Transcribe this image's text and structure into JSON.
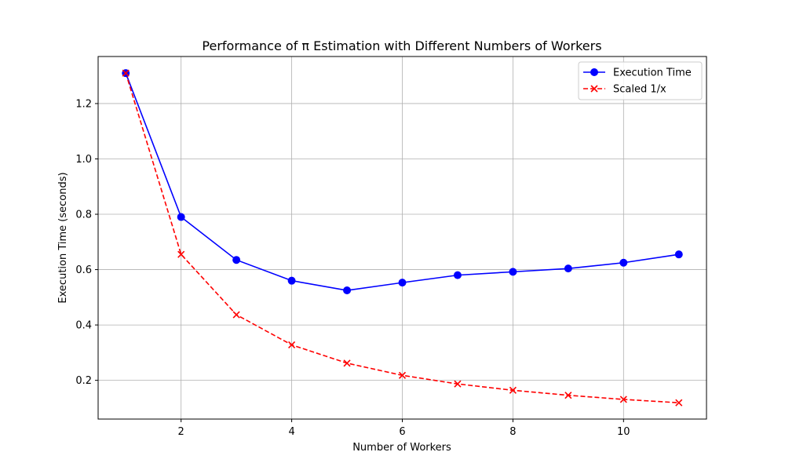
{
  "chart_data": {
    "type": "line",
    "title": "Performance of π Estimation with Different Numbers of Workers",
    "xlabel": "Number of Workers",
    "ylabel": "Execution Time (seconds)",
    "xlim": [
      0.5,
      11.5
    ],
    "ylim": [
      0.06,
      1.37
    ],
    "xticks": [
      2,
      4,
      6,
      8,
      10
    ],
    "yticks": [
      0.2,
      0.4,
      0.6,
      0.8,
      1.0,
      1.2
    ],
    "xtick_labels": [
      "2",
      "4",
      "6",
      "8",
      "10"
    ],
    "ytick_labels": [
      "0.2",
      "0.4",
      "0.6",
      "0.8",
      "1.0",
      "1.2"
    ],
    "grid": true,
    "legend_position": "top-right",
    "x": [
      1,
      2,
      3,
      4,
      5,
      6,
      7,
      8,
      9,
      10,
      11
    ],
    "series": [
      {
        "name": "Execution Time",
        "color": "#0000ff",
        "line_style": "solid",
        "marker": "circle",
        "values": [
          1.31,
          0.79,
          0.635,
          0.56,
          0.525,
          0.553,
          0.58,
          0.592,
          0.604,
          0.625,
          0.655
        ]
      },
      {
        "name": "Scaled 1/x",
        "color": "#ff0000",
        "line_style": "dashed",
        "marker": "x",
        "values": [
          1.31,
          0.655,
          0.437,
          0.328,
          0.262,
          0.218,
          0.187,
          0.164,
          0.146,
          0.131,
          0.119
        ]
      }
    ]
  }
}
